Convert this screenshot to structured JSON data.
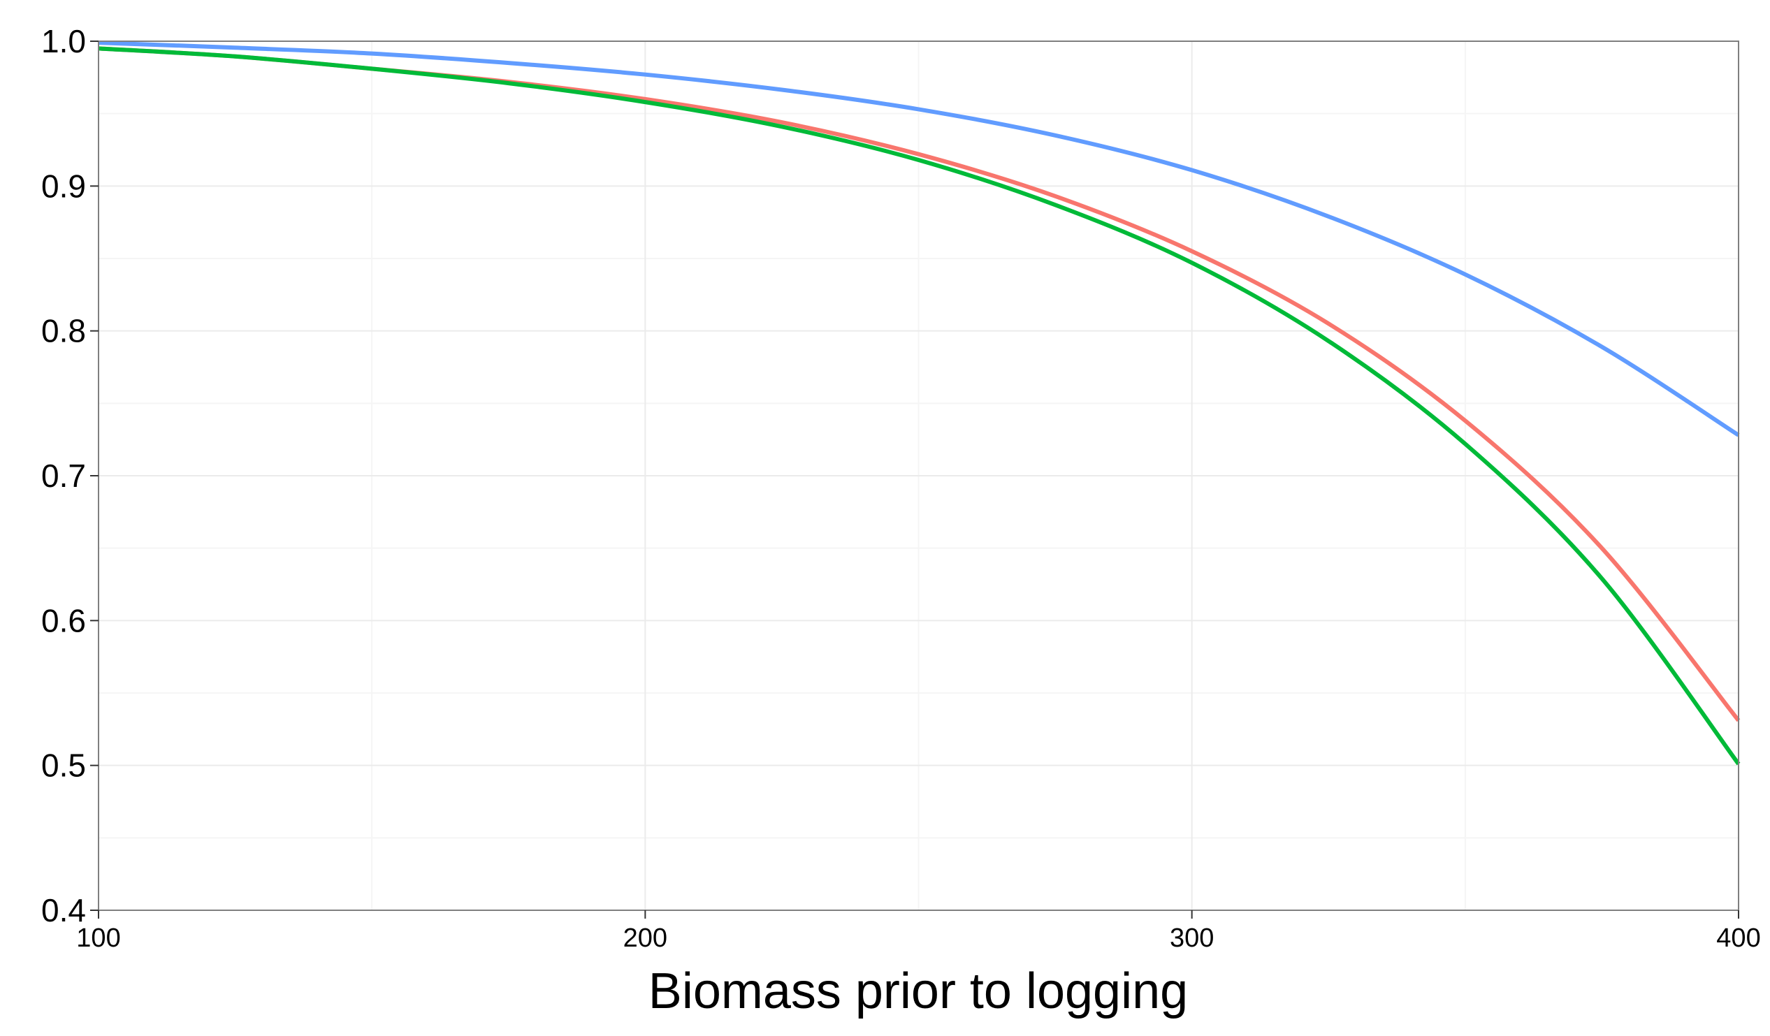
{
  "chart_data": {
    "type": "line",
    "title": "",
    "xlabel": "Biomass prior to logging",
    "ylabel": "",
    "xlim": [
      100,
      400
    ],
    "ylim": [
      0.4,
      1.0
    ],
    "x_ticks": [
      100,
      200,
      300,
      400
    ],
    "x_tick_labels": [
      "100",
      "200",
      "300",
      "400"
    ],
    "y_ticks": [
      0.4,
      0.5,
      0.6,
      0.7,
      0.8,
      0.9,
      1.0
    ],
    "y_tick_labels": [
      "0.4",
      "0.5",
      "0.6",
      "0.7",
      "0.8",
      "0.9",
      "1.0"
    ],
    "grid": true,
    "legend": "none",
    "x": [
      100,
      125,
      150,
      175,
      200,
      225,
      250,
      275,
      300,
      325,
      350,
      375,
      400
    ],
    "series": [
      {
        "color": "#619CFF",
        "values": [
          0.999,
          0.9955,
          0.9915,
          0.985,
          0.977,
          0.9665,
          0.953,
          0.935,
          0.911,
          0.879,
          0.839,
          0.789,
          0.728
        ]
      },
      {
        "color": "#F8766D",
        "values": [
          0.995,
          0.9895,
          0.981,
          0.972,
          0.96,
          0.944,
          0.922,
          0.893,
          0.855,
          0.805,
          0.738,
          0.65,
          0.531
        ]
      },
      {
        "color": "#00BA38",
        "values": [
          0.995,
          0.9895,
          0.981,
          0.971,
          0.958,
          0.941,
          0.918,
          0.887,
          0.847,
          0.793,
          0.722,
          0.629,
          0.501
        ]
      }
    ]
  }
}
